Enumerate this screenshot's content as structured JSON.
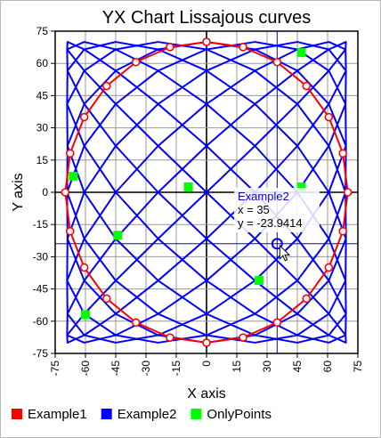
{
  "chart_data": {
    "type": "line",
    "title": "YX Chart  Lissajous curves",
    "xlabel": "X axis",
    "ylabel": "Y axis",
    "xlim": [
      -75,
      75
    ],
    "ylim": [
      -75,
      75
    ],
    "x_ticks": [
      -75,
      -60,
      -45,
      -30,
      -15,
      0,
      15,
      30,
      45,
      60,
      75
    ],
    "y_ticks": [
      -75,
      -60,
      -45,
      -30,
      -15,
      0,
      15,
      30,
      45,
      60,
      75
    ],
    "x_tick_labels": [
      "-75",
      "-60",
      "-45",
      "-30",
      "-15",
      "0",
      "15",
      "30",
      "45",
      "60",
      "75"
    ],
    "y_tick_labels": [
      "-75",
      "-60",
      "-45",
      "-30",
      "-15",
      "0",
      "15",
      "30",
      "45",
      "60",
      "75"
    ],
    "grid": true,
    "legend_position": "bottom",
    "series": [
      {
        "name": "Example1",
        "color": "#ff0000",
        "marker": "open-circle",
        "points": [
          [
            0,
            70
          ],
          [
            18.1,
            67.6
          ],
          [
            35,
            60.6
          ],
          [
            49.5,
            49.5
          ],
          [
            60.6,
            35
          ],
          [
            67.6,
            18.1
          ],
          [
            70,
            0
          ],
          [
            67.6,
            -18.1
          ],
          [
            60.6,
            -35
          ],
          [
            49.5,
            -49.5
          ],
          [
            35,
            -60.6
          ],
          [
            18.1,
            -67.6
          ],
          [
            0,
            -70
          ],
          [
            -18.1,
            -67.6
          ],
          [
            -35,
            -60.6
          ],
          [
            -49.5,
            -49.5
          ],
          [
            -60.6,
            -35
          ],
          [
            -67.6,
            -18.1
          ],
          [
            -70,
            0
          ],
          [
            -67.6,
            18.1
          ],
          [
            -60.6,
            35
          ],
          [
            -49.5,
            49.5
          ],
          [
            -35,
            60.6
          ],
          [
            -18.1,
            67.6
          ],
          [
            0,
            70
          ],
          [
            18.1,
            67.6
          ],
          [
            35,
            60.6
          ],
          [
            49.5,
            49.5
          ],
          [
            60.6,
            35
          ],
          [
            67.6,
            18.1
          ],
          [
            70,
            0
          ],
          [
            67.6,
            -18.1
          ],
          [
            60.6,
            -35
          ],
          [
            49.5,
            -49.5
          ],
          [
            35,
            -60.6
          ],
          [
            18.1,
            -67.6
          ],
          [
            0,
            -70
          ],
          [
            -18.1,
            -67.6
          ],
          [
            -35,
            -60.6
          ],
          [
            -49.5,
            -49.5
          ],
          [
            -60.6,
            -35
          ],
          [
            -67.6,
            -18.1
          ],
          [
            -70,
            0
          ],
          [
            -67.6,
            18.1
          ],
          [
            -60.6,
            35
          ],
          [
            -49.5,
            49.5
          ],
          [
            -35,
            60.6
          ],
          [
            -18.1,
            67.6
          ],
          [
            0,
            70
          ]
        ]
      },
      {
        "name": "Example2",
        "color": "#0000ff",
        "marker": "none",
        "points": [
          [
            0,
            70
          ],
          [
            -24,
            66.5
          ],
          [
            -45,
            56.6
          ],
          [
            -60.6,
            41.1
          ],
          [
            -68.9,
            21.6
          ],
          [
            -69.1,
            0
          ],
          [
            -60.6,
            -21.6
          ],
          [
            -45,
            -41.1
          ],
          [
            -24,
            -56.6
          ],
          [
            0,
            -66.5
          ],
          [
            24,
            -70
          ],
          [
            45,
            -66.5
          ],
          [
            60.6,
            -56.6
          ],
          [
            68.9,
            -41.1
          ],
          [
            69.1,
            -21.6
          ],
          [
            60.6,
            0
          ],
          [
            45,
            21.6
          ],
          [
            24,
            41.1
          ],
          [
            0,
            56.6
          ],
          [
            -24,
            66.5
          ],
          [
            -45,
            70
          ],
          [
            -60.6,
            66.5
          ],
          [
            -68.9,
            56.6
          ],
          [
            -69.1,
            41.1
          ],
          [
            -60.6,
            21.6
          ],
          [
            -45,
            0
          ],
          [
            -24,
            -21.6
          ],
          [
            0,
            -41.1
          ],
          [
            24,
            -56.6
          ],
          [
            45,
            -66.5
          ],
          [
            60.6,
            -70
          ],
          [
            68.9,
            -66.5
          ],
          [
            69.1,
            -56.6
          ],
          [
            60.6,
            -41.1
          ],
          [
            45,
            -21.6
          ],
          [
            24,
            0
          ],
          [
            0,
            21.6
          ],
          [
            -24,
            41.1
          ],
          [
            -45,
            56.6
          ],
          [
            -60.6,
            66.5
          ],
          [
            -68.9,
            70
          ],
          [
            -69.1,
            66.5
          ],
          [
            -60.6,
            56.6
          ],
          [
            -45,
            41.1
          ],
          [
            -24,
            21.6
          ],
          [
            0,
            0
          ],
          [
            24,
            -21.6
          ],
          [
            45,
            -41.1
          ],
          [
            60.6,
            -56.6
          ],
          [
            68.9,
            -66.5
          ],
          [
            69.1,
            -70
          ],
          [
            60.6,
            -66.5
          ],
          [
            45,
            -56.6
          ],
          [
            24,
            -41.1
          ],
          [
            0,
            -21.6
          ],
          [
            -24,
            0
          ],
          [
            -45,
            21.6
          ],
          [
            -60.6,
            41.1
          ],
          [
            -68.9,
            56.6
          ],
          [
            -69.1,
            66.5
          ],
          [
            -60.6,
            70
          ],
          [
            -45,
            66.5
          ],
          [
            -24,
            56.6
          ],
          [
            0,
            41.1
          ],
          [
            24,
            21.6
          ],
          [
            45,
            0
          ],
          [
            60.6,
            -21.6
          ],
          [
            68.9,
            -41.1
          ],
          [
            69.1,
            -56.6
          ],
          [
            60.6,
            -66.5
          ],
          [
            45,
            -70
          ],
          [
            24,
            -66.5
          ],
          [
            0,
            -56.6
          ],
          [
            -24,
            -41.1
          ],
          [
            -45,
            -21.6
          ],
          [
            -60.6,
            0
          ],
          [
            -68.9,
            21.6
          ],
          [
            -69.1,
            41.1
          ],
          [
            -60.6,
            56.6
          ],
          [
            -45,
            66.5
          ],
          [
            -24,
            70
          ],
          [
            0,
            66.5
          ],
          [
            24,
            56.6
          ],
          [
            45,
            41.1
          ],
          [
            60.6,
            21.6
          ],
          [
            68.9,
            0
          ],
          [
            69.1,
            -21.6
          ],
          [
            60.6,
            -41.1
          ],
          [
            45,
            -56.6
          ],
          [
            24,
            -66.5
          ],
          [
            0,
            -70
          ],
          [
            -24,
            -66.5
          ],
          [
            -45,
            -56.6
          ],
          [
            -60.6,
            -41.1
          ],
          [
            -68.9,
            -21.6
          ],
          [
            -69.1,
            0
          ],
          [
            -60.6,
            21.6
          ],
          [
            -45,
            41.1
          ],
          [
            -24,
            56.6
          ],
          [
            0,
            66.5
          ],
          [
            24,
            70
          ],
          [
            45,
            66.5
          ],
          [
            60.6,
            56.6
          ],
          [
            68.9,
            41.1
          ],
          [
            69.1,
            21.6
          ],
          [
            60.6,
            0
          ],
          [
            45,
            -21.6
          ],
          [
            24,
            -41.1
          ],
          [
            0,
            -56.6
          ],
          [
            -24,
            -66.5
          ],
          [
            -45,
            -70
          ],
          [
            -60.6,
            -66.5
          ],
          [
            -68.9,
            -56.6
          ],
          [
            -69.1,
            -41.1
          ],
          [
            -60.6,
            -21.6
          ],
          [
            -45,
            0
          ],
          [
            -24,
            21.6
          ],
          [
            0,
            41.1
          ],
          [
            24,
            56.6
          ],
          [
            45,
            66.5
          ],
          [
            60.6,
            70
          ],
          [
            68.9,
            66.5
          ],
          [
            69.1,
            56.6
          ],
          [
            60.6,
            41.1
          ],
          [
            45,
            21.6
          ],
          [
            24,
            0
          ],
          [
            0,
            -21.6
          ],
          [
            -24,
            -41.1
          ],
          [
            -45,
            -56.6
          ],
          [
            -60.6,
            -66.5
          ],
          [
            -68.9,
            -70
          ],
          [
            -69.1,
            -66.5
          ],
          [
            -60.6,
            -56.6
          ],
          [
            -45,
            -41.1
          ],
          [
            -24,
            -21.6
          ],
          [
            0,
            0
          ],
          [
            24,
            21.6
          ],
          [
            45,
            41.1
          ],
          [
            60.6,
            56.6
          ],
          [
            68.9,
            66.5
          ],
          [
            69.1,
            70
          ],
          [
            60.6,
            66.5
          ],
          [
            45,
            56.6
          ],
          [
            24,
            41.1
          ],
          [
            0,
            21.6
          ],
          [
            -24,
            0
          ],
          [
            -45,
            -21.6
          ],
          [
            -60.6,
            -41.1
          ],
          [
            -68.9,
            -56.6
          ],
          [
            -69.1,
            -66.5
          ],
          [
            -60.6,
            -70
          ],
          [
            -45,
            -66.5
          ],
          [
            -24,
            -56.6
          ],
          [
            0,
            -41.1
          ],
          [
            24,
            -21.6
          ],
          [
            45,
            0
          ],
          [
            60.6,
            21.6
          ],
          [
            68.9,
            41.1
          ],
          [
            69.1,
            56.6
          ],
          [
            60.6,
            66.5
          ],
          [
            45,
            70
          ],
          [
            24,
            66.5
          ],
          [
            0,
            56.6
          ],
          [
            -24,
            41.1
          ],
          [
            -45,
            21.6
          ],
          [
            -60.6,
            0
          ],
          [
            -68.9,
            -21.6
          ],
          [
            -69.1,
            -41.1
          ],
          [
            -60.6,
            -56.6
          ],
          [
            -45,
            -66.5
          ],
          [
            -24,
            -70
          ],
          [
            0,
            -66.5
          ],
          [
            24,
            -56.6
          ],
          [
            45,
            -41.1
          ],
          [
            60.6,
            -21.6
          ],
          [
            68.9,
            0
          ],
          [
            69.1,
            21.6
          ],
          [
            60.6,
            41.1
          ],
          [
            45,
            56.6
          ],
          [
            24,
            66.5
          ],
          [
            0,
            70
          ]
        ]
      },
      {
        "name": "OnlyPoints",
        "color": "#00ff00",
        "marker": "filled-square",
        "points": [
          [
            -66,
            7.5
          ],
          [
            -60,
            -57
          ],
          [
            -44,
            -20
          ],
          [
            -9,
            2.5
          ],
          [
            26,
            -41
          ],
          [
            47,
            2.5
          ],
          [
            47,
            65
          ]
        ]
      }
    ],
    "crosshair": {
      "series": "Example2",
      "x": 35,
      "y": -23.9414,
      "line_color": "#0000ff"
    },
    "tooltip": {
      "series_label": "Example2",
      "x_line": "x = 35",
      "y_line": "y = -23.9414"
    }
  }
}
